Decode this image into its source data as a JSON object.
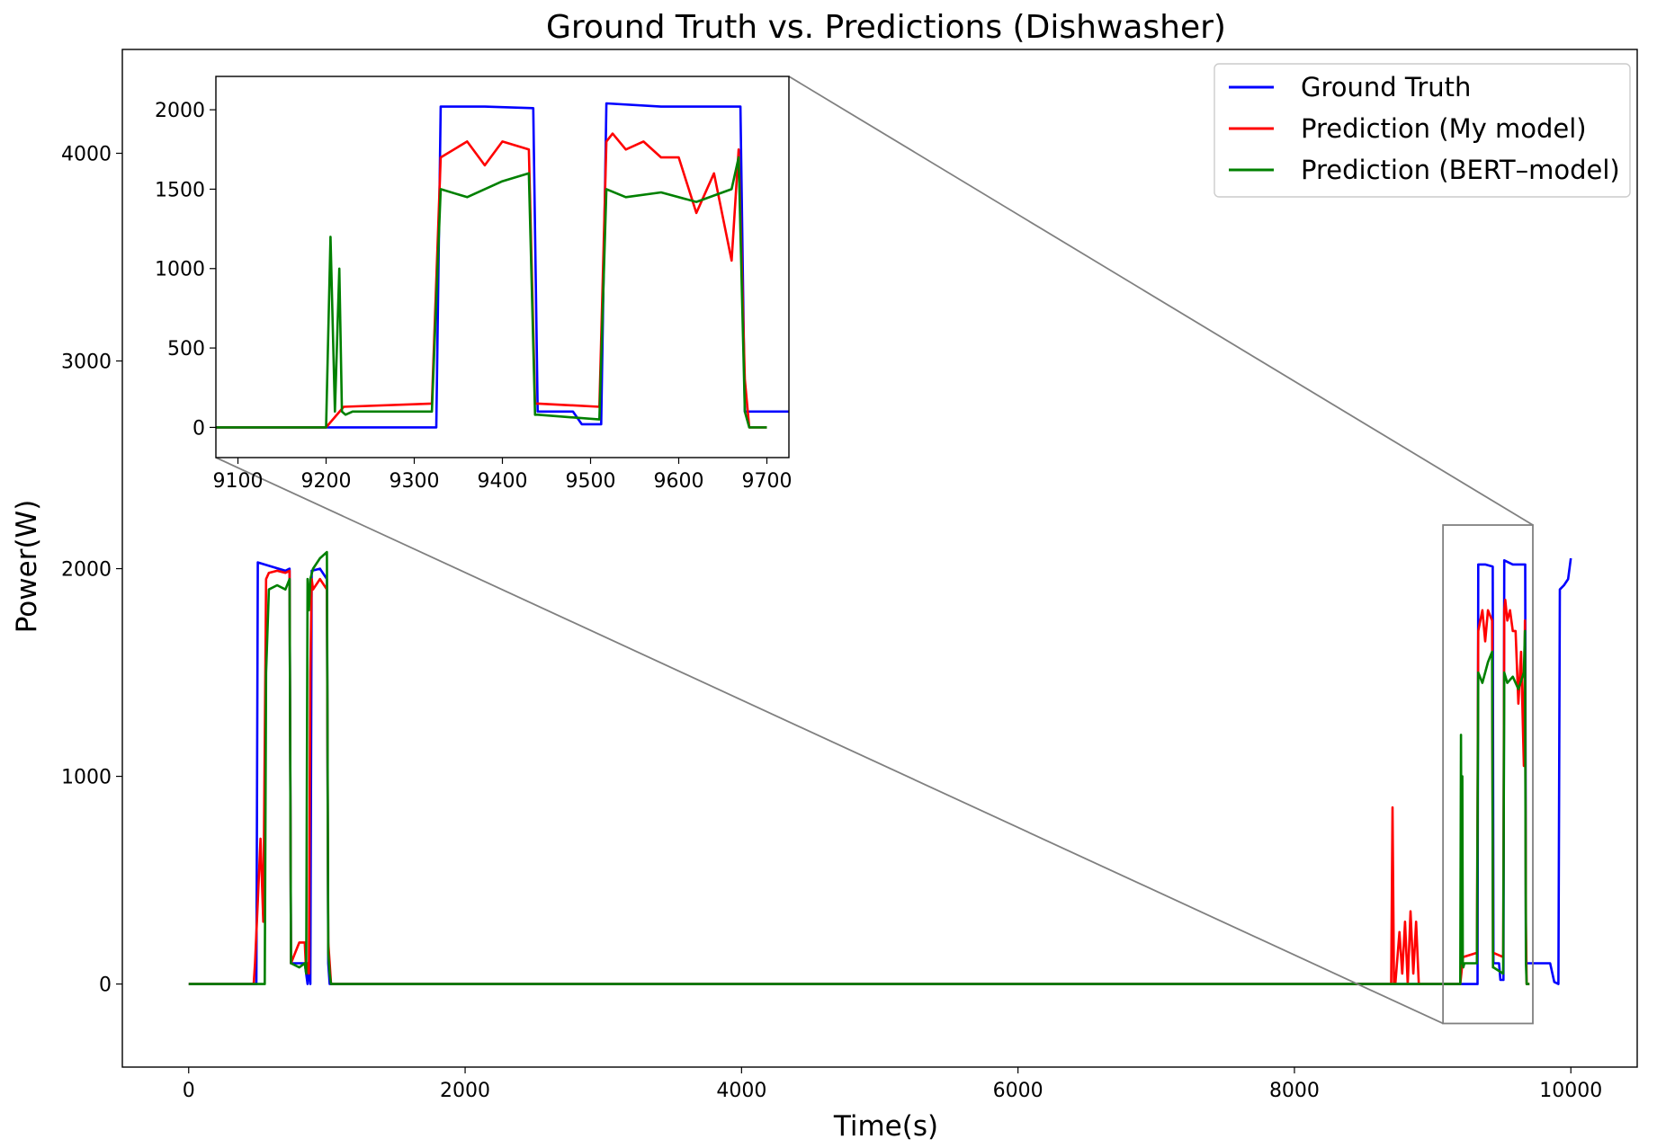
{
  "chart_data": {
    "type": "line",
    "title": "Ground Truth vs. Predictions (Dishwasher)",
    "xlabel": "Time(s)",
    "ylabel": "Power(W)",
    "xlim": [
      -480,
      10480
    ],
    "ylim": [
      -400,
      4500
    ],
    "xticks": [
      0,
      2000,
      4000,
      6000,
      8000,
      10000
    ],
    "yticks": [
      0,
      1000,
      2000,
      3000,
      4000
    ],
    "grid": false,
    "legend_position": "top-right",
    "colors": {
      "Ground Truth": "#0000ff",
      "Prediction (My model)": "#ff0000",
      "Prediction (BERT–model)": "#008000"
    },
    "series": [
      {
        "name": "Ground Truth",
        "color": "#0000ff",
        "x": [
          0,
          490,
          500,
          600,
          700,
          730,
          740,
          800,
          840,
          860,
          870,
          880,
          890,
          950,
          1000,
          1010,
          1020,
          9300,
          9325,
          9330,
          9380,
          9435,
          9440,
          9480,
          9490,
          9512,
          9518,
          9580,
          9670,
          9675,
          9700,
          9850,
          9880,
          9910,
          9920,
          9950,
          9980,
          10000
        ],
        "values": [
          0,
          0,
          2030,
          2010,
          1990,
          2000,
          100,
          100,
          100,
          0,
          100,
          0,
          1990,
          2000,
          1950,
          100,
          0,
          0,
          0,
          2020,
          2020,
          2010,
          100,
          100,
          20,
          20,
          2040,
          2020,
          2020,
          100,
          100,
          100,
          10,
          0,
          1900,
          1920,
          1950,
          2050
        ]
      },
      {
        "name": "Prediction (My model)",
        "color": "#ff0000",
        "x": [
          0,
          470,
          480,
          500,
          520,
          540,
          560,
          580,
          640,
          700,
          730,
          740,
          800,
          840,
          850,
          860,
          870,
          880,
          890,
          900,
          950,
          1000,
          1010,
          1020,
          1030,
          1040,
          8700,
          8710,
          8720,
          8730,
          8760,
          8780,
          8800,
          8820,
          8840,
          8860,
          8880,
          8900,
          8920,
          8940,
          9200,
          9220,
          9320,
          9330,
          9360,
          9380,
          9400,
          9430,
          9437,
          9440,
          9510,
          9518,
          9525,
          9540,
          9560,
          9580,
          9600,
          9620,
          9640,
          9660,
          9668,
          9675,
          9680,
          9700
        ],
        "values": [
          0,
          0,
          100,
          400,
          700,
          300,
          1950,
          1980,
          1990,
          1980,
          1990,
          100,
          200,
          200,
          50,
          100,
          50,
          1500,
          1950,
          1900,
          1950,
          1900,
          200,
          100,
          0,
          0,
          0,
          850,
          0,
          0,
          250,
          50,
          300,
          0,
          350,
          50,
          300,
          0,
          0,
          0,
          0,
          130,
          150,
          1700,
          1800,
          1650,
          1800,
          1750,
          150,
          150,
          130,
          1800,
          1850,
          1750,
          1800,
          1700,
          1700,
          1350,
          1600,
          1050,
          1750,
          300,
          0,
          0
        ]
      },
      {
        "name": "Prediction (BERT–model)",
        "color": "#008000",
        "x": [
          0,
          550,
          560,
          580,
          640,
          700,
          730,
          740,
          800,
          840,
          850,
          860,
          870,
          880,
          900,
          950,
          1000,
          1010,
          1020,
          1030,
          9200,
          9205,
          9210,
          9215,
          9218,
          9222,
          9230,
          9320,
          9330,
          9360,
          9400,
          9430,
          9437,
          9440,
          9510,
          9518,
          9540,
          9580,
          9620,
          9660,
          9668,
          9675,
          9680,
          9700
        ],
        "values": [
          0,
          0,
          1500,
          1900,
          1920,
          1900,
          1950,
          100,
          80,
          100,
          50,
          1950,
          1800,
          1950,
          2000,
          2050,
          2080,
          150,
          50,
          0,
          0,
          1200,
          100,
          1000,
          100,
          80,
          100,
          100,
          1500,
          1450,
          1550,
          1600,
          80,
          80,
          50,
          1500,
          1450,
          1480,
          1420,
          1500,
          1700,
          100,
          0,
          0
        ]
      }
    ],
    "inset": {
      "xlim": [
        9075,
        9725
      ],
      "ylim": [
        -190,
        2210
      ],
      "xticks": [
        9100,
        9200,
        9300,
        9400,
        9500,
        9600,
        9700
      ],
      "yticks": [
        0,
        500,
        1000,
        1500,
        2000
      ],
      "grid": false
    }
  }
}
